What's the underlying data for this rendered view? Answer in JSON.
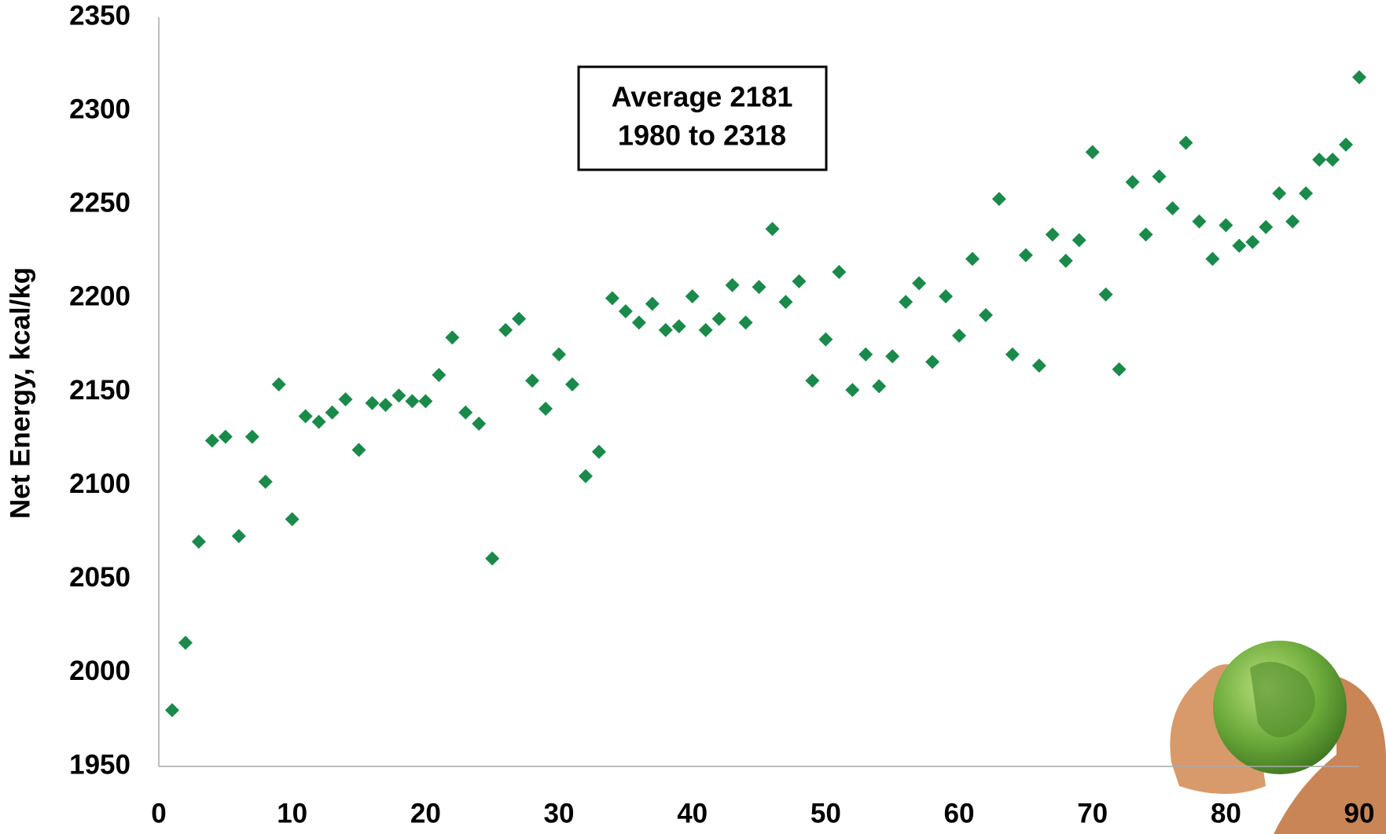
{
  "chart_data": {
    "type": "scatter",
    "y_label": "Net Energy, kcal/kg",
    "annotation": [
      "Average 2181",
      "1980 to 2318"
    ],
    "x": [
      1,
      2,
      3,
      4,
      5,
      6,
      7,
      8,
      9,
      10,
      11,
      12,
      13,
      14,
      15,
      16,
      17,
      18,
      19,
      20,
      21,
      22,
      23,
      24,
      25,
      26,
      27,
      28,
      29,
      30,
      31,
      32,
      33,
      34,
      35,
      36,
      37,
      38,
      39,
      40,
      41,
      42,
      43,
      44,
      45,
      46,
      47,
      48,
      49,
      50,
      51,
      52,
      53,
      54,
      55,
      56,
      57,
      58,
      59,
      60,
      61,
      62,
      63,
      64,
      65,
      66,
      67,
      68,
      69,
      70,
      71,
      72,
      73,
      74,
      75,
      76,
      77,
      78,
      79,
      80,
      81,
      82,
      83,
      84,
      85,
      86,
      87,
      88,
      89,
      90
    ],
    "values": [
      1980,
      2016,
      2070,
      2124,
      2126,
      2073,
      2126,
      2102,
      2154,
      2082,
      2137,
      2134,
      2139,
      2146,
      2119,
      2144,
      2143,
      2148,
      2145,
      2145,
      2159,
      2179,
      2139,
      2133,
      2061,
      2183,
      2189,
      2156,
      2141,
      2170,
      2154,
      2105,
      2118,
      2200,
      2193,
      2187,
      2197,
      2183,
      2185,
      2201,
      2183,
      2189,
      2207,
      2187,
      2206,
      2237,
      2198,
      2209,
      2156,
      2178,
      2214,
      2151,
      2170,
      2153,
      2169,
      2198,
      2208,
      2166,
      2201,
      2180,
      2221,
      2191,
      2253,
      2170,
      2223,
      2164,
      2234,
      2220,
      2231,
      2278,
      2202,
      2162,
      2262,
      2234,
      2265,
      2248,
      2283,
      2241,
      2221,
      2239,
      2228,
      2230,
      2238,
      2256,
      2241,
      2256,
      2274,
      2274,
      2282,
      2318
    ],
    "color": "#1a8a4a",
    "xlim": [
      0,
      90
    ],
    "xticks": [
      0,
      10,
      20,
      30,
      40,
      50,
      60,
      70,
      80,
      90
    ],
    "ylim": [
      1950,
      2350
    ],
    "yticks": [
      1950,
      2000,
      2050,
      2100,
      2150,
      2200,
      2250,
      2300,
      2350
    ],
    "grid": false
  }
}
